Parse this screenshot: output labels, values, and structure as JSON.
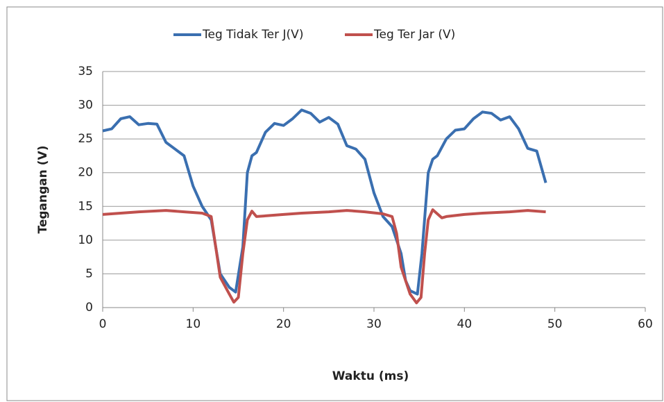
{
  "chart_data": {
    "type": "line",
    "x_label": "Waktu (ms)",
    "y_label": "Tegangan (V)",
    "xlim": [
      0,
      60
    ],
    "xticks": [
      0,
      10,
      20,
      30,
      40,
      50,
      60
    ],
    "ylim": [
      0,
      35
    ],
    "yticks": [
      0,
      5,
      10,
      15,
      20,
      25,
      30,
      35
    ],
    "grid": true,
    "legend": "top",
    "series": [
      {
        "name": "Teg Tidak Ter J(V)",
        "color": "#3a6fb0",
        "x": [
          0,
          1,
          2,
          3,
          4,
          5,
          6,
          7,
          8,
          9,
          10,
          11,
          12,
          13,
          14,
          14.7,
          15.5,
          16,
          16.5,
          17,
          18,
          19,
          20,
          21,
          22,
          23,
          24,
          25,
          26,
          27,
          28,
          29,
          30,
          31,
          32,
          33,
          33.5,
          34,
          34.8,
          35.3,
          36,
          36.5,
          37,
          38,
          39,
          40,
          41,
          42,
          43,
          44,
          45,
          46,
          47,
          48,
          49
        ],
        "values": [
          26.2,
          26.5,
          28,
          28.3,
          27.1,
          27.3,
          27.2,
          24.5,
          23.5,
          22.5,
          18,
          15,
          13,
          5,
          3,
          2.3,
          9,
          20,
          22.5,
          23,
          26,
          27.3,
          27,
          28,
          29.3,
          28.8,
          27.5,
          28.2,
          27.2,
          24,
          23.5,
          22,
          17,
          13.5,
          12,
          8,
          4,
          2.5,
          2,
          8,
          20,
          22,
          22.5,
          25,
          26.3,
          26.5,
          28,
          29,
          28.8,
          27.8,
          28.3,
          26.5,
          23.6,
          23.2,
          18.5
        ]
      },
      {
        "name": "Teg Ter Jar (V)",
        "color": "#c0504d",
        "x": [
          0,
          2,
          4,
          7,
          9,
          11,
          12,
          12.5,
          13,
          14,
          14.5,
          15,
          15.5,
          16,
          16.5,
          17,
          18,
          20,
          22,
          25,
          27,
          29,
          31,
          32,
          32.5,
          33,
          34,
          34.7,
          35.2,
          35.6,
          36,
          36.5,
          37.5,
          38,
          40,
          42,
          45,
          47,
          49
        ],
        "values": [
          13.8,
          14,
          14.2,
          14.4,
          14.2,
          14,
          13.5,
          9,
          4.5,
          2,
          0.8,
          1.5,
          8,
          13,
          14.3,
          13.5,
          13.6,
          13.8,
          14,
          14.2,
          14.4,
          14.2,
          13.9,
          13.5,
          11,
          6,
          2,
          0.7,
          1.5,
          8,
          13,
          14.5,
          13.3,
          13.5,
          13.8,
          14,
          14.2,
          14.4,
          14.2
        ]
      }
    ]
  }
}
